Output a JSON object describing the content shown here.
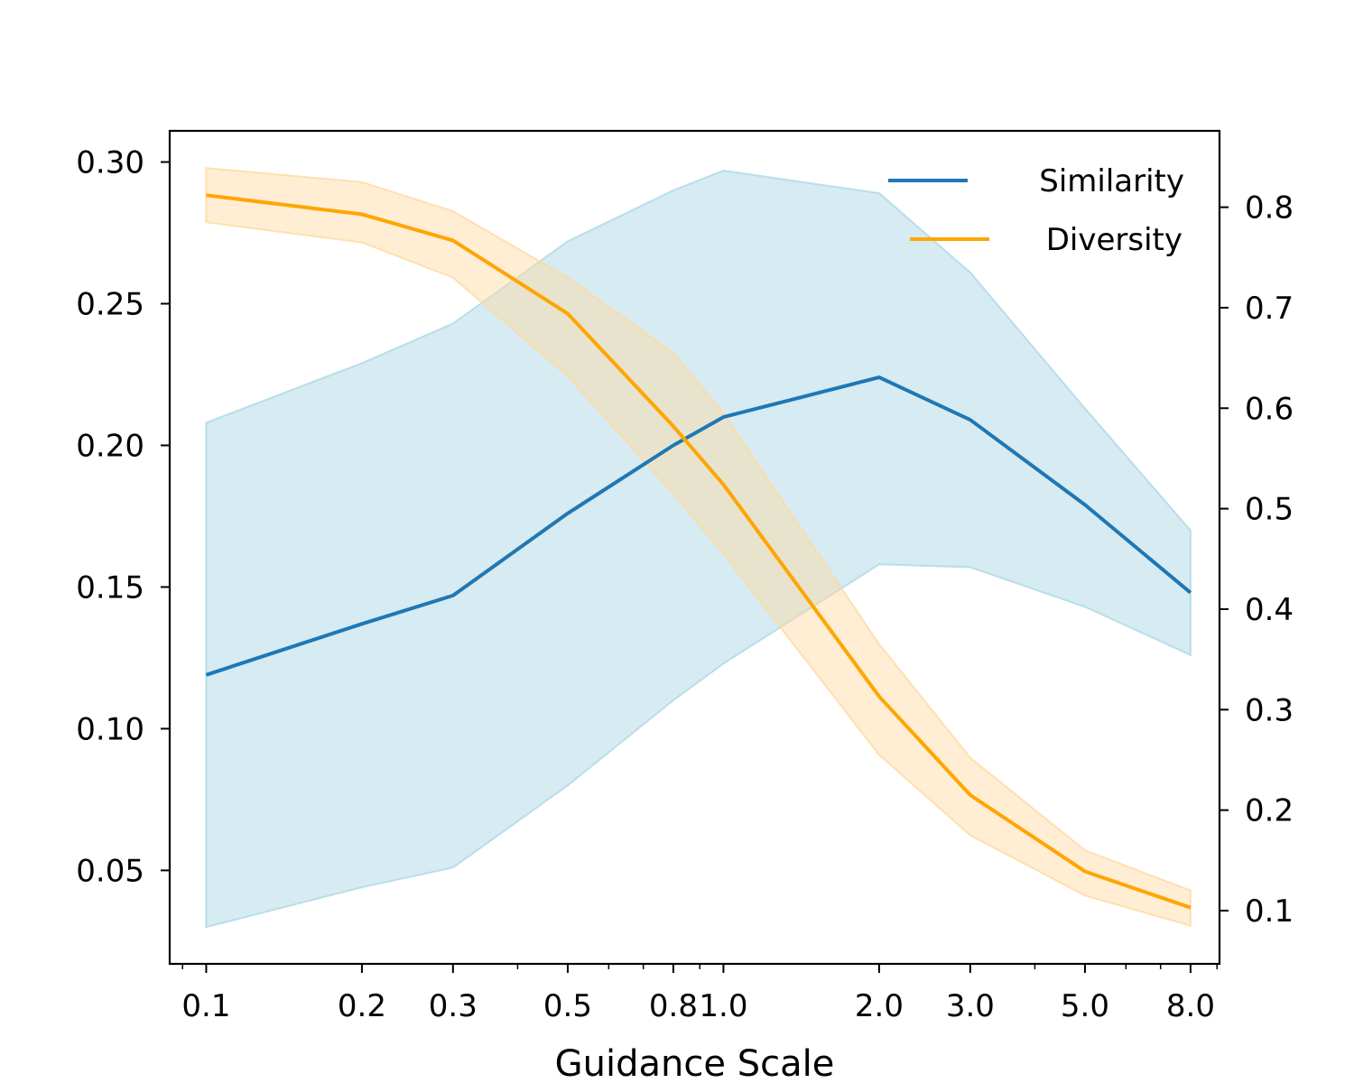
{
  "chart_data": {
    "type": "line",
    "xlabel": "Guidance Scale",
    "ylabel_left": "",
    "ylabel_right": "",
    "x_scale": "log",
    "xlim": [
      0.085,
      9.1
    ],
    "ylim_left": [
      0.017,
      0.311
    ],
    "ylim_right": [
      0.047,
      0.876
    ],
    "grid": false,
    "legend_position": "top-right",
    "x_ticks": [
      {
        "value": 0.1,
        "label": "0.1"
      },
      {
        "value": 0.2,
        "label": "0.2"
      },
      {
        "value": 0.3,
        "label": "0.3"
      },
      {
        "value": 0.5,
        "label": "0.5"
      },
      {
        "value": 0.8,
        "label": "0.8"
      },
      {
        "value": 1.0,
        "label": "1.0"
      },
      {
        "value": 2.0,
        "label": "2.0"
      },
      {
        "value": 3.0,
        "label": "3.0"
      },
      {
        "value": 5.0,
        "label": "5.0"
      },
      {
        "value": 8.0,
        "label": "8.0"
      }
    ],
    "x_minor_ticks": [
      0.09,
      0.4,
      0.6,
      0.7,
      0.9,
      4.0,
      6.0,
      7.0,
      9.0
    ],
    "y_ticks_left": [
      {
        "value": 0.05,
        "label": "0.05"
      },
      {
        "value": 0.1,
        "label": "0.10"
      },
      {
        "value": 0.15,
        "label": "0.15"
      },
      {
        "value": 0.2,
        "label": "0.20"
      },
      {
        "value": 0.25,
        "label": "0.25"
      },
      {
        "value": 0.3,
        "label": "0.30"
      }
    ],
    "y_ticks_right": [
      {
        "value": 0.1,
        "label": "0.1"
      },
      {
        "value": 0.2,
        "label": "0.2"
      },
      {
        "value": 0.3,
        "label": "0.3"
      },
      {
        "value": 0.4,
        "label": "0.4"
      },
      {
        "value": 0.5,
        "label": "0.5"
      },
      {
        "value": 0.6,
        "label": "0.6"
      },
      {
        "value": 0.7,
        "label": "0.7"
      },
      {
        "value": 0.8,
        "label": "0.8"
      }
    ],
    "x": [
      0.1,
      0.2,
      0.3,
      0.5,
      0.8,
      1.0,
      2.0,
      3.0,
      5.0,
      8.0
    ],
    "series": [
      {
        "name": "Similarity",
        "axis": "left",
        "color": "#1f77b4",
        "band_color": "#add8e6",
        "values": [
          0.119,
          0.137,
          0.147,
          0.176,
          0.2,
          0.21,
          0.224,
          0.209,
          0.179,
          0.148
        ],
        "upper": [
          0.208,
          0.229,
          0.243,
          0.272,
          0.29,
          0.297,
          0.289,
          0.261,
          0.213,
          0.17
        ],
        "lower": [
          0.03,
          0.044,
          0.051,
          0.08,
          0.11,
          0.123,
          0.158,
          0.157,
          0.143,
          0.126
        ]
      },
      {
        "name": "Diversity",
        "axis": "right",
        "color": "#ffa500",
        "band_color": "#ffd9a0",
        "values": [
          0.812,
          0.793,
          0.767,
          0.694,
          0.582,
          0.524,
          0.313,
          0.215,
          0.139,
          0.103
        ],
        "upper": [
          0.839,
          0.825,
          0.796,
          0.73,
          0.655,
          0.595,
          0.365,
          0.252,
          0.16,
          0.12
        ],
        "lower": [
          0.785,
          0.765,
          0.73,
          0.632,
          0.515,
          0.455,
          0.255,
          0.175,
          0.115,
          0.085
        ]
      }
    ]
  }
}
